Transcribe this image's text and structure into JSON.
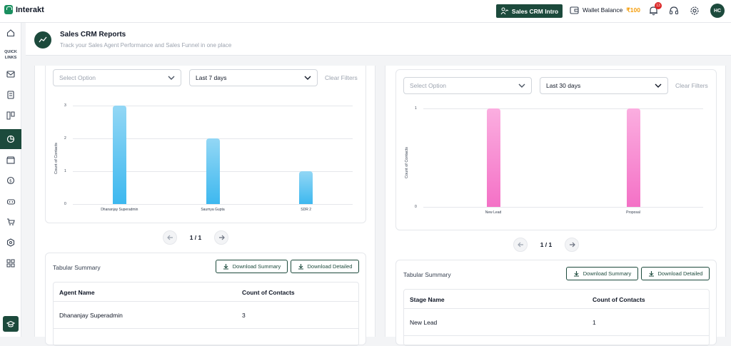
{
  "app": {
    "name": "Interakt"
  },
  "topbar": {
    "intro_label": "Sales CRM Intro",
    "wallet_label": "Wallet Balance",
    "wallet_amount": "₹100",
    "notification_count": "13",
    "avatar_initials": "HC"
  },
  "sidebar": {
    "quick_links": "QUICK LINKS"
  },
  "header": {
    "title": "Sales CRM Reports",
    "subtitle": "Track your Sales Agent Performance and Sales Funnel in one place"
  },
  "left": {
    "filter_placeholder": "Select Option",
    "range": "Last 7 days",
    "clear": "Clear Filters",
    "pager": "1 / 1",
    "summary_title": "Tabular Summary",
    "download_summary": "Download Summary",
    "download_detailed": "Download Detailed",
    "columns": [
      "Agent Name",
      "Count of Contacts"
    ],
    "rows": [
      [
        "Dhananjay Superadmin",
        "3"
      ]
    ]
  },
  "right": {
    "filter_placeholder": "Select Option",
    "range": "Last 30 days",
    "clear": "Clear Filters",
    "pager": "1 / 1",
    "summary_title": "Tabular Summary",
    "download_summary": "Download Summary",
    "download_detailed": "Download Detailed",
    "columns": [
      "Stage Name",
      "Count of Contacts"
    ],
    "rows": [
      [
        "New Lead",
        "1"
      ]
    ]
  },
  "chart_data": [
    {
      "type": "bar",
      "categories": [
        "Dhananjay Superadmin",
        "Saumya Gupta",
        "SDR 2"
      ],
      "values": [
        3,
        2,
        1
      ],
      "ylabel": "Count of Contacts",
      "yticks": [
        "0",
        "1",
        "2",
        "3"
      ],
      "ylim": [
        0,
        3
      ],
      "color": "#3db8ef"
    },
    {
      "type": "bar",
      "categories": [
        "New Lead",
        "Proposal"
      ],
      "values": [
        1,
        1
      ],
      "ylabel": "Count of Contacts",
      "yticks": [
        "0",
        "1"
      ],
      "ylim": [
        0,
        1
      ],
      "color": "#f471c6"
    }
  ]
}
